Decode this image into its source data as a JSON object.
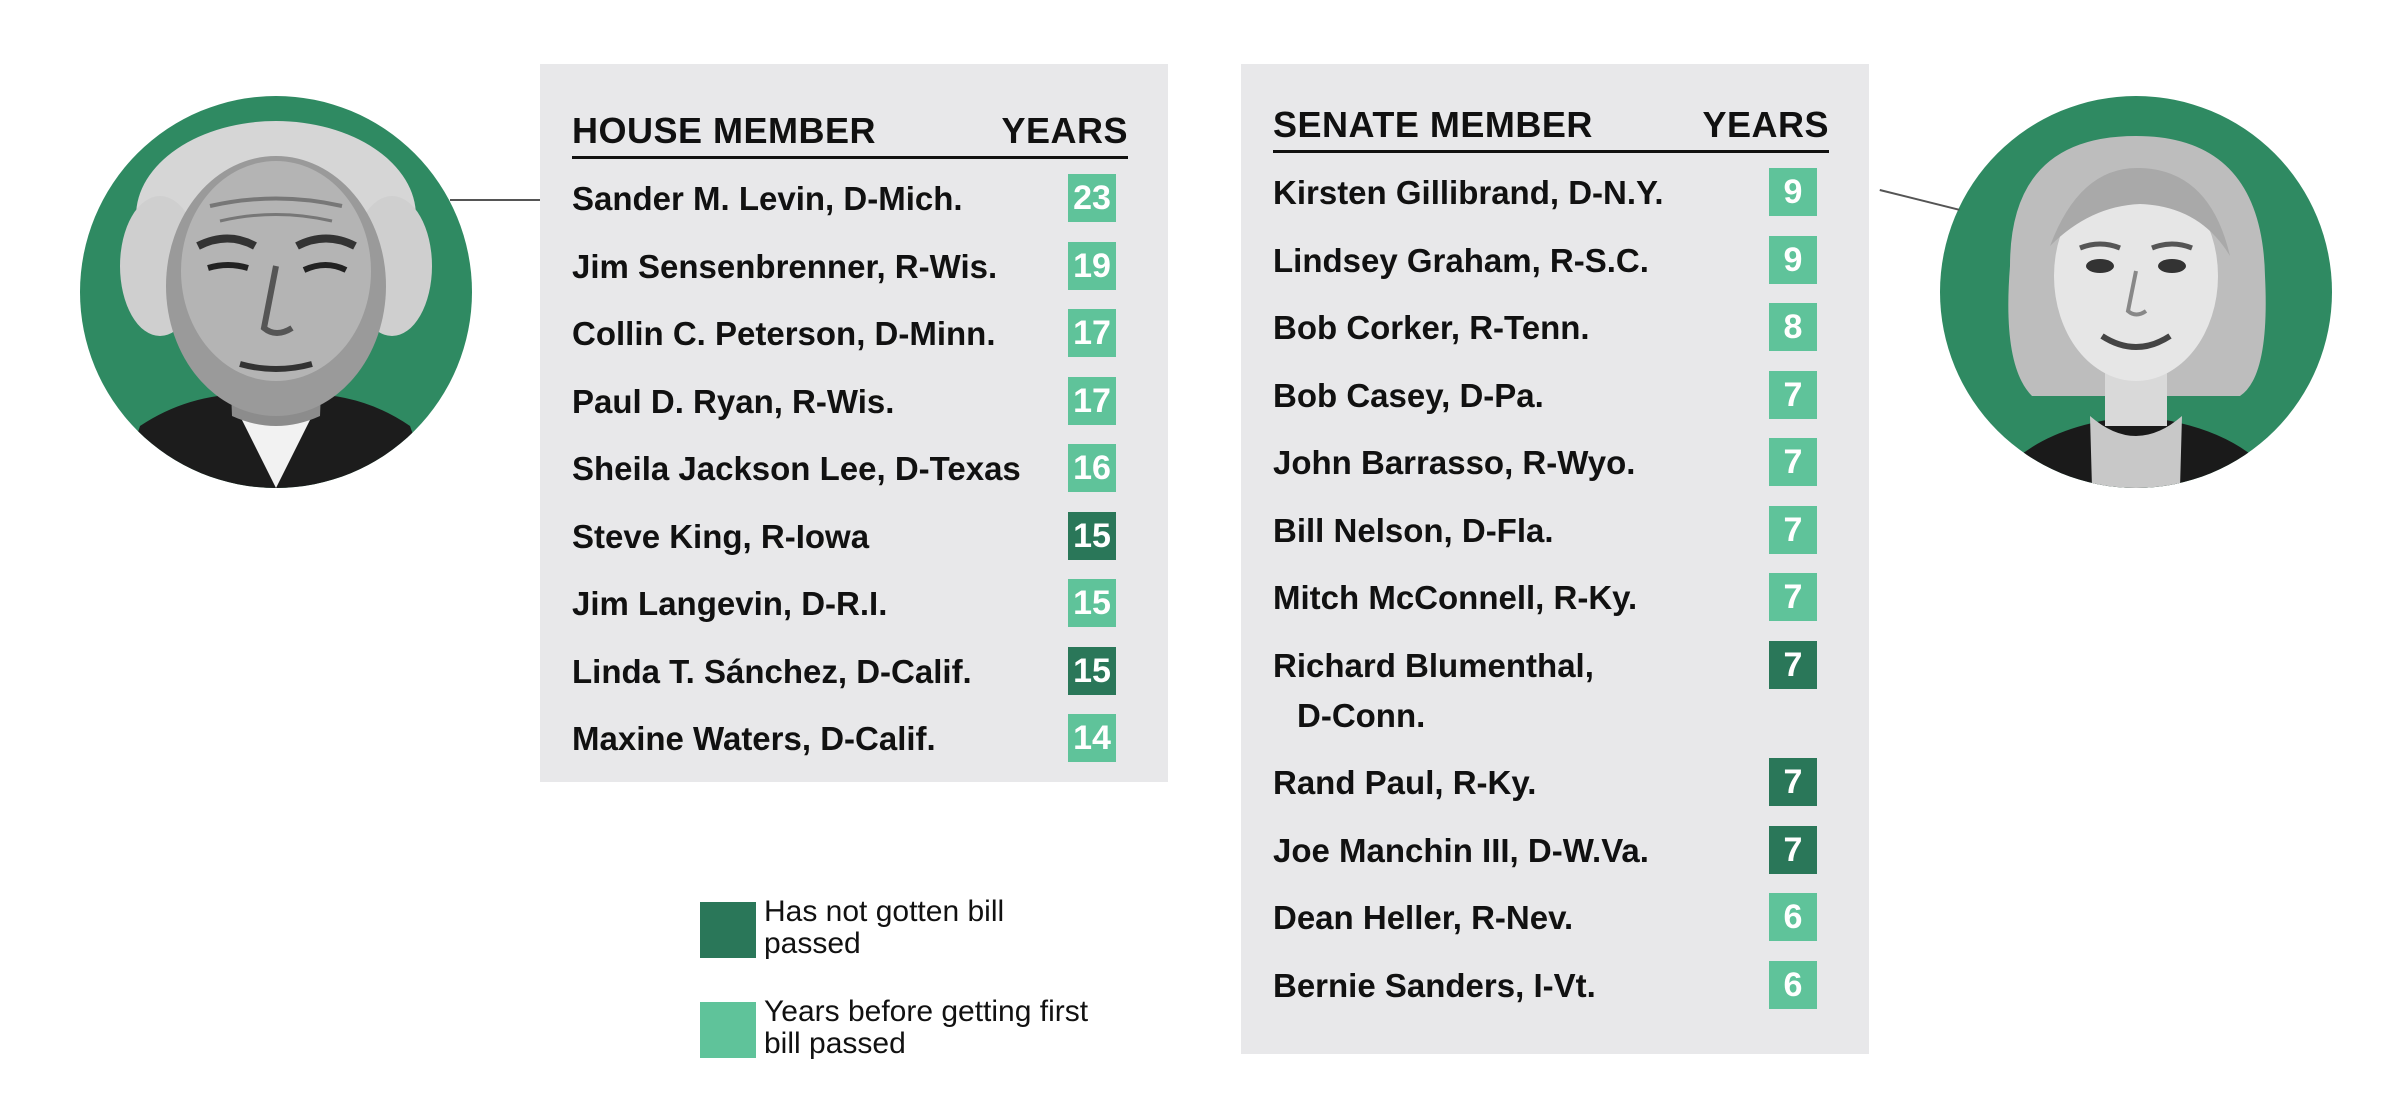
{
  "colors": {
    "not_passed": "#2a7759",
    "passed": "#5fc39a",
    "portrait_bg": "#2f8a62",
    "panel_bg": "#e8e8ea"
  },
  "house": {
    "col_name": "HOUSE MEMBER",
    "col_years": "YEARS"
  },
  "senate": {
    "col_name": "SENATE MEMBER",
    "col_years": "YEARS"
  },
  "legend": [
    {
      "key": "not_passed",
      "label": "Has not gotten bill passed"
    },
    {
      "key": "passed",
      "label": "Years before getting first bill passed"
    }
  ],
  "chart_data": [
    {
      "type": "table",
      "title": "",
      "columns": [
        "HOUSE MEMBER",
        "YEARS"
      ],
      "rows": [
        {
          "name": "Sander M. Levin, D-Mich.",
          "years": 23,
          "status": "passed"
        },
        {
          "name": "Jim Sensenbrenner, R-Wis.",
          "years": 19,
          "status": "passed"
        },
        {
          "name": "Collin C. Peterson, D-Minn.",
          "years": 17,
          "status": "passed"
        },
        {
          "name": "Paul D. Ryan, R-Wis.",
          "years": 17,
          "status": "passed"
        },
        {
          "name": "Sheila Jackson Lee, D-Texas",
          "years": 16,
          "status": "passed"
        },
        {
          "name": "Steve King, R-Iowa",
          "years": 15,
          "status": "not_passed"
        },
        {
          "name": "Jim Langevin, D-R.I.",
          "years": 15,
          "status": "passed"
        },
        {
          "name": "Linda T. Sánchez, D-Calif.",
          "years": 15,
          "status": "not_passed"
        },
        {
          "name": "Maxine Waters, D-Calif.",
          "years": 14,
          "status": "passed"
        }
      ]
    },
    {
      "type": "table",
      "title": "",
      "columns": [
        "SENATE MEMBER",
        "YEARS"
      ],
      "rows": [
        {
          "name": "Kirsten Gillibrand, D-N.Y.",
          "years": 9,
          "status": "passed"
        },
        {
          "name": "Lindsey Graham, R-S.C.",
          "years": 9,
          "status": "passed"
        },
        {
          "name": "Bob Corker, R-Tenn.",
          "years": 8,
          "status": "passed"
        },
        {
          "name": "Bob Casey, D-Pa.",
          "years": 7,
          "status": "passed"
        },
        {
          "name": "John Barrasso, R-Wyo.",
          "years": 7,
          "status": "passed"
        },
        {
          "name": "Bill Nelson, D-Fla.",
          "years": 7,
          "status": "passed"
        },
        {
          "name": "Mitch McConnell, R-Ky.",
          "years": 7,
          "status": "passed"
        },
        {
          "name": "Richard Blumenthal, D-Conn.",
          "years": 7,
          "status": "not_passed"
        },
        {
          "name": "Rand Paul, R-Ky.",
          "years": 7,
          "status": "not_passed"
        },
        {
          "name": "Joe Manchin III, D-W.Va.",
          "years": 7,
          "status": "not_passed"
        },
        {
          "name": "Dean Heller, R-Nev.",
          "years": 6,
          "status": "passed"
        },
        {
          "name": "Bernie Sanders, I-Vt.",
          "years": 6,
          "status": "passed"
        }
      ]
    }
  ]
}
